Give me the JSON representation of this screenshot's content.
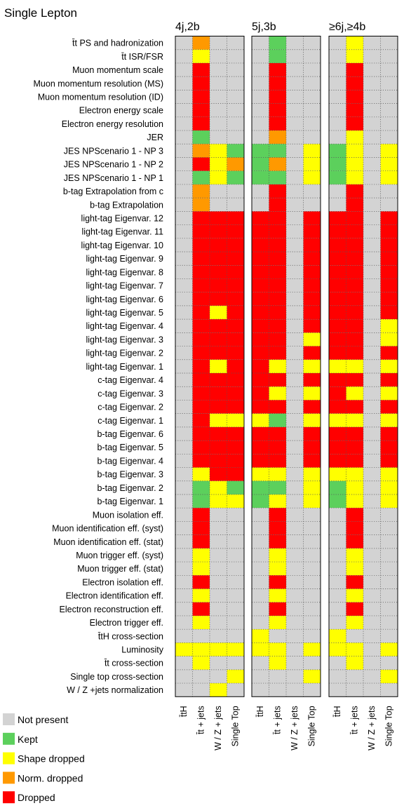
{
  "title": "Single Lepton",
  "chart_data": {
    "type": "heatmap",
    "title": "Single Lepton",
    "panels": [
      "4j,2b",
      "5j,3b",
      "≥6j,≥4b"
    ],
    "columns": [
      "t̄tH",
      "t̄t + jets",
      "W / Z + jets",
      "Single Top"
    ],
    "rows": [
      "t̄t PS and hadronization",
      "t̄t ISR/FSR",
      "Muon momentum scale",
      "Muon momentum resolution (MS)",
      "Muon momentum resolution (ID)",
      "Electron energy scale",
      "Electron energy resolution",
      "JER",
      "JES NPScenario 1 - NP 3",
      "JES NPScenario 1 - NP 2",
      "JES NPScenario 1 - NP 1",
      "b-tag Extrapolation from c",
      "b-tag Extrapolation",
      "light-tag Eigenvar. 12",
      "light-tag Eigenvar. 11",
      "light-tag Eigenvar. 10",
      "light-tag Eigenvar. 9",
      "light-tag Eigenvar. 8",
      "light-tag Eigenvar. 7",
      "light-tag Eigenvar. 6",
      "light-tag Eigenvar. 5",
      "light-tag Eigenvar. 4",
      "light-tag Eigenvar. 3",
      "light-tag Eigenvar. 2",
      "light-tag Eigenvar. 1",
      "c-tag Eigenvar. 4",
      "c-tag Eigenvar. 3",
      "c-tag Eigenvar. 2",
      "c-tag Eigenvar. 1",
      "b-tag Eigenvar. 6",
      "b-tag Eigenvar. 5",
      "b-tag Eigenvar. 4",
      "b-tag Eigenvar. 3",
      "b-tag Eigenvar. 2",
      "b-tag Eigenvar. 1",
      "Muon isolation eff.",
      "Muon identification eff. (syst)",
      "Muon identification eff. (stat)",
      "Muon trigger eff. (syst)",
      "Muon trigger eff. (stat)",
      "Electron isolation eff.",
      "Electron identification eff.",
      "Electron reconstruction eff.",
      "Electron trigger eff.",
      "t̄tH cross-section",
      "Luminosity",
      "t̄t cross-section",
      "Single top cross-section",
      "W / Z +jets normalization"
    ],
    "categories": {
      "N": "Not present",
      "K": "Kept",
      "S": "Shape dropped",
      "O": "Norm. dropped",
      "D": "Dropped"
    },
    "colors": {
      "N": "#d3d3d3",
      "K": "#5cd05c",
      "S": "#ffff00",
      "O": "#ff9900",
      "D": "#ff0000"
    },
    "legend": [
      "N",
      "K",
      "S",
      "O",
      "D"
    ],
    "legend_position": "bottom-left",
    "values": [
      [
        "NONN",
        "NKNN",
        "NSNN"
      ],
      [
        "NSNN",
        "NKNN",
        "NSNN"
      ],
      [
        "NDNN",
        "NDNN",
        "NDNN"
      ],
      [
        "NDNN",
        "NDNN",
        "NDNN"
      ],
      [
        "NDNN",
        "NDNN",
        "NDNN"
      ],
      [
        "NDNN",
        "NDNN",
        "NDNN"
      ],
      [
        "NDNN",
        "NDNN",
        "NDNN"
      ],
      [
        "NKNN",
        "NONN",
        "NSNN"
      ],
      [
        "NOSK",
        "KKNS",
        "KSNS"
      ],
      [
        "NDSO",
        "KONS",
        "KSNS"
      ],
      [
        "NKSK",
        "KKNS",
        "KSNS"
      ],
      [
        "NONN",
        "NDNN",
        "NDNN"
      ],
      [
        "NONN",
        "NDNN",
        "NDNN"
      ],
      [
        "NDDD",
        "DDND",
        "DDND"
      ],
      [
        "NDDD",
        "DDND",
        "DDND"
      ],
      [
        "NDDD",
        "DDND",
        "DDND"
      ],
      [
        "NDDD",
        "DDND",
        "DDND"
      ],
      [
        "NDDD",
        "DDND",
        "DDND"
      ],
      [
        "NDDD",
        "DDND",
        "DDND"
      ],
      [
        "NDDD",
        "DDND",
        "DDND"
      ],
      [
        "NDSD",
        "DDND",
        "DDND"
      ],
      [
        "NDDD",
        "DDND",
        "DDNS"
      ],
      [
        "NDDD",
        "DDNS",
        "DDNS"
      ],
      [
        "NDDD",
        "DDND",
        "DDND"
      ],
      [
        "NDSD",
        "DSNS",
        "SSNS"
      ],
      [
        "NDDD",
        "DDND",
        "DDND"
      ],
      [
        "NDDD",
        "DSNS",
        "DSNS"
      ],
      [
        "NDDD",
        "DDND",
        "DDND"
      ],
      [
        "NDSS",
        "SKNS",
        "SSNS"
      ],
      [
        "NDDD",
        "DDND",
        "DDND"
      ],
      [
        "NDDD",
        "DDND",
        "DDND"
      ],
      [
        "NDDD",
        "DDND",
        "DDND"
      ],
      [
        "NSDD",
        "SSNS",
        "SSNS"
      ],
      [
        "NKSK",
        "KKNS",
        "KSNS"
      ],
      [
        "NKSS",
        "KSNS",
        "KSNS"
      ],
      [
        "NDNN",
        "NDNN",
        "NDNN"
      ],
      [
        "NDNN",
        "NDNN",
        "NDNN"
      ],
      [
        "NDNN",
        "NDNN",
        "NDNN"
      ],
      [
        "NSNN",
        "NSNN",
        "NSNN"
      ],
      [
        "NSNN",
        "NSNN",
        "NSNN"
      ],
      [
        "NDNN",
        "NDNN",
        "NDNN"
      ],
      [
        "NSNN",
        "NSNN",
        "NSNN"
      ],
      [
        "NDNN",
        "NDNN",
        "NDNN"
      ],
      [
        "NSNN",
        "NSNN",
        "NSNN"
      ],
      [
        "NNNN",
        "SNNN",
        "SNNN"
      ],
      [
        "SSSS",
        "SSNS",
        "SSNS"
      ],
      [
        "NSNN",
        "NSNN",
        "NSNN"
      ],
      [
        "NNNS",
        "NNNS",
        "NNNS"
      ],
      [
        "NNSN",
        "NNNN",
        "NNNN"
      ]
    ]
  }
}
